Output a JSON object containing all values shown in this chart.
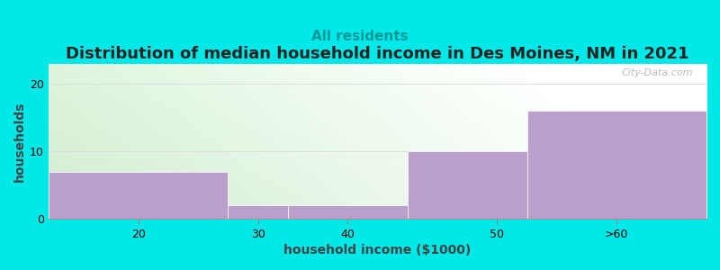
{
  "title": "Distribution of median household income in Des Moines, NM in 2021",
  "subtitle": "All residents",
  "xlabel": "household income ($1000)",
  "ylabel": "households",
  "bin_edges": [
    10,
    25,
    30,
    40,
    50,
    65
  ],
  "tick_positions": [
    17.5,
    27.5,
    35,
    47.5,
    57.5
  ],
  "tick_labels": [
    "20",
    "30",
    "40",
    "50",
    ">60"
  ],
  "values": [
    7,
    2,
    2,
    10,
    16
  ],
  "bar_color": "#b9a0cc",
  "background_color": "#00e8e8",
  "title_fontsize": 13,
  "subtitle_fontsize": 11,
  "subtitle_color": "#009999",
  "axis_label_fontsize": 10,
  "tick_fontsize": 9,
  "ylim": [
    0,
    23
  ],
  "yticks": [
    0,
    10,
    20
  ],
  "watermark": "City-Data.com",
  "grid_color": "#dddddd",
  "plot_bg_left_color": "#d0eecc",
  "plot_bg_right_color": "#f8f8f8"
}
